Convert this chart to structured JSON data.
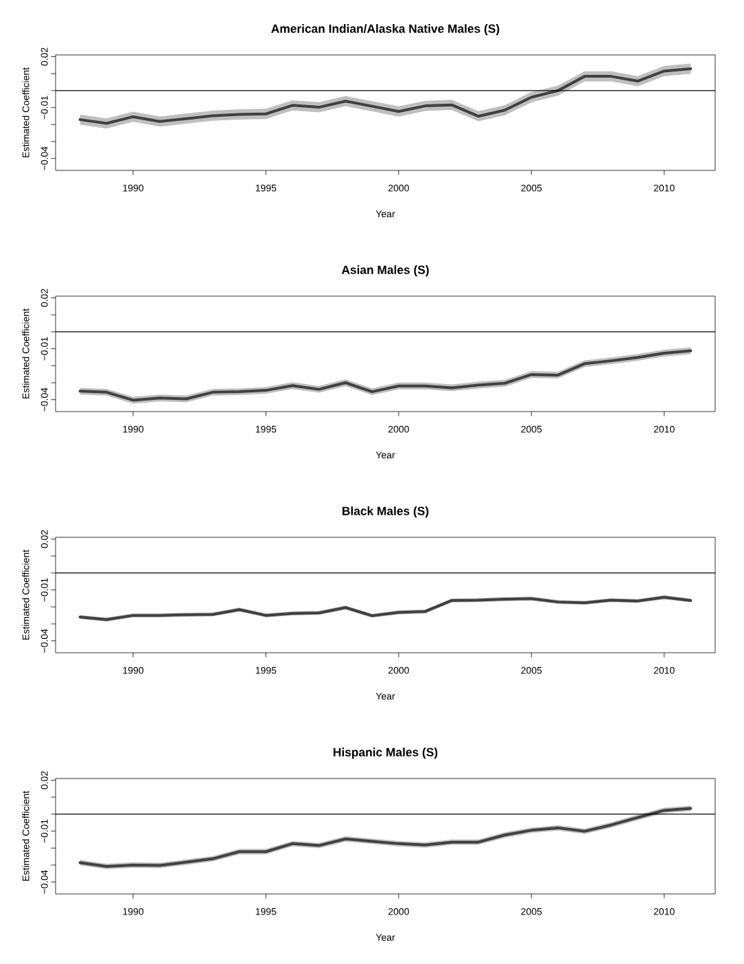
{
  "chart_data": [
    {
      "type": "line",
      "title": "American Indian/Alaska Native Males (S)",
      "xlabel": "Year",
      "ylabel": "Estimated Coefficient",
      "x": [
        1988,
        1989,
        1990,
        1991,
        1992,
        1993,
        1994,
        1995,
        1996,
        1997,
        1998,
        1999,
        2000,
        2001,
        2002,
        2003,
        2004,
        2005,
        2006,
        2007,
        2008,
        2009,
        2010,
        2011
      ],
      "series": [
        {
          "color": "#404040",
          "values": [
            -0.0171,
            -0.0193,
            -0.0154,
            -0.0182,
            -0.0165,
            -0.0148,
            -0.014,
            -0.0137,
            -0.0087,
            -0.0098,
            -0.0062,
            -0.0092,
            -0.0123,
            -0.009,
            -0.0084,
            -0.0151,
            -0.0115,
            -0.0039,
            0,
            0.0084,
            0.0084,
            0.0056,
            0.0115,
            0.0129
          ],
          "lower": [
            -0.0201,
            -0.0223,
            -0.0184,
            -0.0212,
            -0.0195,
            -0.0178,
            -0.017,
            -0.0167,
            -0.0117,
            -0.0128,
            -0.0092,
            -0.0122,
            -0.0153,
            -0.012,
            -0.0114,
            -0.0181,
            -0.0145,
            -0.0069,
            -0.003,
            0.0054,
            0.0054,
            0.0026,
            0.0085,
            0.0099
          ],
          "upper": [
            -0.0141,
            -0.0163,
            -0.0124,
            -0.0152,
            -0.0135,
            -0.0118,
            -0.011,
            -0.0107,
            -0.0057,
            -0.0068,
            -0.0032,
            -0.0062,
            -0.0093,
            -0.006,
            -0.0054,
            -0.0121,
            -0.0085,
            -0.0009,
            0.003,
            0.0114,
            0.0114,
            0.0086,
            0.0145,
            0.0159
          ]
        }
      ],
      "xlim": [
        1987.08,
        2011.92
      ],
      "ylim": [
        -0.047,
        0.021
      ],
      "xticks": [
        1990,
        1995,
        2000,
        2005,
        2010
      ],
      "yticks": [
        {
          "value": 0.02,
          "label": "0.02"
        },
        {
          "value": 0.01,
          "label": null
        },
        {
          "value": 0,
          "label": null
        },
        {
          "value": -0.01,
          "label": "−0.01"
        },
        {
          "value": -0.02,
          "label": null
        },
        {
          "value": -0.03,
          "label": null
        },
        {
          "value": -0.04,
          "label": "−0.04"
        }
      ],
      "ref_lines": [
        {
          "axis": "y",
          "value": 0,
          "color": "#000000"
        }
      ]
    },
    {
      "type": "line",
      "title": "Asian Males (S)",
      "xlabel": "Year",
      "ylabel": "Estimated Coefficient",
      "x": [
        1988,
        1989,
        1990,
        1991,
        1992,
        1993,
        1994,
        1995,
        1996,
        1997,
        1998,
        1999,
        2000,
        2001,
        2002,
        2003,
        2004,
        2005,
        2006,
        2007,
        2008,
        2009,
        2010,
        2011
      ],
      "series": [
        {
          "color": "#404040",
          "values": [
            -0.035,
            -0.0356,
            -0.0403,
            -0.039,
            -0.0395,
            -0.0356,
            -0.0353,
            -0.0345,
            -0.0317,
            -0.0339,
            -0.03,
            -0.0353,
            -0.0319,
            -0.0319,
            -0.033,
            -0.0314,
            -0.0303,
            -0.0252,
            -0.0255,
            -0.0188,
            -0.0171,
            -0.0151,
            -0.0126,
            -0.0112
          ],
          "lower": [
            -0.037,
            -0.0376,
            -0.0423,
            -0.041,
            -0.0415,
            -0.0376,
            -0.0373,
            -0.0365,
            -0.0337,
            -0.0359,
            -0.032,
            -0.0373,
            -0.0339,
            -0.0339,
            -0.035,
            -0.0334,
            -0.0323,
            -0.0272,
            -0.0275,
            -0.0208,
            -0.0191,
            -0.0171,
            -0.0146,
            -0.0132
          ],
          "upper": [
            -0.033,
            -0.0336,
            -0.0383,
            -0.037,
            -0.0375,
            -0.0336,
            -0.0333,
            -0.0325,
            -0.0297,
            -0.0319,
            -0.028,
            -0.0333,
            -0.0299,
            -0.0299,
            -0.031,
            -0.0294,
            -0.0283,
            -0.0232,
            -0.0235,
            -0.0168,
            -0.0151,
            -0.0131,
            -0.0106,
            -0.0092
          ]
        }
      ],
      "xlim": [
        1987.08,
        2011.92
      ],
      "ylim": [
        -0.047,
        0.021
      ],
      "xticks": [
        1990,
        1995,
        2000,
        2005,
        2010
      ],
      "yticks": [
        {
          "value": 0.02,
          "label": "0.02"
        },
        {
          "value": 0.01,
          "label": null
        },
        {
          "value": 0,
          "label": null
        },
        {
          "value": -0.01,
          "label": "−0.01"
        },
        {
          "value": -0.02,
          "label": null
        },
        {
          "value": -0.03,
          "label": null
        },
        {
          "value": -0.04,
          "label": "−0.04"
        }
      ],
      "ref_lines": [
        {
          "axis": "y",
          "value": 0,
          "color": "#000000"
        }
      ]
    },
    {
      "type": "line",
      "title": "Black Males (S)",
      "xlabel": "Year",
      "ylabel": "Estimated Coefficient",
      "x": [
        1988,
        1989,
        1990,
        1991,
        1992,
        1993,
        1994,
        1995,
        1996,
        1997,
        1998,
        1999,
        2000,
        2001,
        2002,
        2003,
        2004,
        2005,
        2006,
        2007,
        2008,
        2009,
        2010,
        2011
      ],
      "series": [
        {
          "color": "#404040",
          "values": [
            -0.026,
            -0.0275,
            -0.025,
            -0.025,
            -0.0246,
            -0.0244,
            -0.0216,
            -0.025,
            -0.0238,
            -0.0235,
            -0.0204,
            -0.0252,
            -0.0232,
            -0.0227,
            -0.0162,
            -0.016,
            -0.0154,
            -0.0151,
            -0.0171,
            -0.0176,
            -0.016,
            -0.0165,
            -0.0143,
            -0.0162
          ],
          "lower": [
            -0.0272,
            -0.0287,
            -0.0262,
            -0.0262,
            -0.0258,
            -0.0256,
            -0.0228,
            -0.0262,
            -0.025,
            -0.0247,
            -0.0216,
            -0.0264,
            -0.0244,
            -0.0239,
            -0.0174,
            -0.0172,
            -0.0166,
            -0.0163,
            -0.0183,
            -0.0188,
            -0.0172,
            -0.0177,
            -0.0155,
            -0.0174
          ],
          "upper": [
            -0.0248,
            -0.0263,
            -0.0238,
            -0.0238,
            -0.0234,
            -0.0232,
            -0.0204,
            -0.0238,
            -0.0226,
            -0.0223,
            -0.0192,
            -0.024,
            -0.022,
            -0.0215,
            -0.015,
            -0.0148,
            -0.0142,
            -0.0139,
            -0.0159,
            -0.0164,
            -0.0148,
            -0.0153,
            -0.0131,
            -0.015
          ]
        }
      ],
      "xlim": [
        1987.08,
        2011.92
      ],
      "ylim": [
        -0.047,
        0.021
      ],
      "xticks": [
        1990,
        1995,
        2000,
        2005,
        2010
      ],
      "yticks": [
        {
          "value": 0.02,
          "label": "0.02"
        },
        {
          "value": 0.01,
          "label": null
        },
        {
          "value": 0,
          "label": null
        },
        {
          "value": -0.01,
          "label": "−0.01"
        },
        {
          "value": -0.02,
          "label": null
        },
        {
          "value": -0.03,
          "label": null
        },
        {
          "value": -0.04,
          "label": "−0.04"
        }
      ],
      "ref_lines": [
        {
          "axis": "y",
          "value": 0,
          "color": "#000000"
        }
      ]
    },
    {
      "type": "line",
      "title": "Hispanic Males (S)",
      "xlabel": "Year",
      "ylabel": "Estimated Coefficient",
      "x": [
        1988,
        1989,
        1990,
        1991,
        1992,
        1993,
        1994,
        1995,
        1996,
        1997,
        1998,
        1999,
        2000,
        2001,
        2002,
        2003,
        2004,
        2005,
        2006,
        2007,
        2008,
        2009,
        2010,
        2011
      ],
      "series": [
        {
          "color": "#404040",
          "values": [
            -0.0286,
            -0.0308,
            -0.03,
            -0.0302,
            -0.0283,
            -0.0263,
            -0.0221,
            -0.0221,
            -0.0174,
            -0.0185,
            -0.0146,
            -0.016,
            -0.0174,
            -0.0182,
            -0.0165,
            -0.0165,
            -0.0123,
            -0.0095,
            -0.0081,
            -0.0101,
            -0.0064,
            -0.002,
            0.0022,
            0.0034
          ],
          "lower": [
            -0.0302,
            -0.0324,
            -0.0316,
            -0.0318,
            -0.0299,
            -0.0279,
            -0.0237,
            -0.0237,
            -0.019,
            -0.0201,
            -0.0162,
            -0.0176,
            -0.019,
            -0.0198,
            -0.0181,
            -0.0181,
            -0.0139,
            -0.0111,
            -0.0097,
            -0.0117,
            -0.008,
            -0.0036,
            0.0006,
            0.0018
          ],
          "upper": [
            -0.027,
            -0.0292,
            -0.0284,
            -0.0286,
            -0.0267,
            -0.0247,
            -0.0205,
            -0.0205,
            -0.0158,
            -0.0169,
            -0.013,
            -0.0144,
            -0.0158,
            -0.0166,
            -0.0149,
            -0.0149,
            -0.0107,
            -0.0079,
            -0.0065,
            -0.0085,
            -0.0048,
            -0.0004,
            0.0038,
            0.005
          ]
        }
      ],
      "xlim": [
        1987.08,
        2011.92
      ],
      "ylim": [
        -0.047,
        0.021
      ],
      "xticks": [
        1990,
        1995,
        2000,
        2005,
        2010
      ],
      "yticks": [
        {
          "value": 0.02,
          "label": "0.02"
        },
        {
          "value": 0.01,
          "label": null
        },
        {
          "value": 0,
          "label": null
        },
        {
          "value": -0.01,
          "label": "−0.01"
        },
        {
          "value": -0.02,
          "label": null
        },
        {
          "value": -0.03,
          "label": null
        },
        {
          "value": -0.04,
          "label": "−0.04"
        }
      ],
      "ref_lines": [
        {
          "axis": "y",
          "value": 0,
          "color": "#000000"
        }
      ]
    }
  ]
}
